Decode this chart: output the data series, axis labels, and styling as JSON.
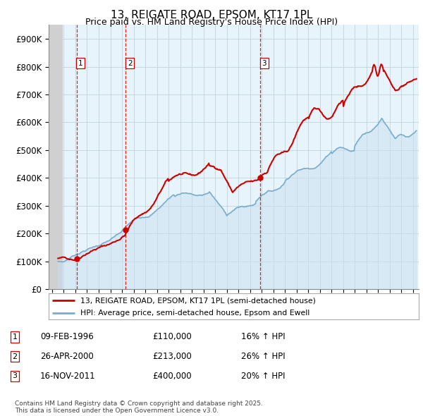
{
  "title": "13, REIGATE ROAD, EPSOM, KT17 1PL",
  "subtitle": "Price paid vs. HM Land Registry's House Price Index (HPI)",
  "ylim": [
    0,
    950000
  ],
  "yticks": [
    0,
    100000,
    200000,
    300000,
    400000,
    500000,
    600000,
    700000,
    800000,
    900000
  ],
  "ytick_labels": [
    "£0",
    "£100K",
    "£200K",
    "£300K",
    "£400K",
    "£500K",
    "£600K",
    "£700K",
    "£800K",
    "£900K"
  ],
  "xlim_start": 1993.7,
  "xlim_end": 2025.5,
  "hatch_end_year": 1994.92,
  "sale_dates": [
    1996.1,
    2000.32,
    2011.88
  ],
  "sale_prices": [
    110000,
    213000,
    400000
  ],
  "sale_labels": [
    "1",
    "2",
    "3"
  ],
  "sale_date_strings": [
    "09-FEB-1996",
    "26-APR-2000",
    "16-NOV-2011"
  ],
  "sale_price_strings": [
    "£110,000",
    "£213,000",
    "£400,000"
  ],
  "sale_hpi_strings": [
    "16% ↑ HPI",
    "26% ↑ HPI",
    "20% ↑ HPI"
  ],
  "price_line_color": "#cc0000",
  "hpi_line_color": "#7aadcc",
  "hpi_fill_color": "#c8dff0",
  "vline_color": "#dd0000",
  "background_color": "#ffffff",
  "plot_bg_color": "#e8f4fb",
  "legend_line1": "13, REIGATE ROAD, EPSOM, KT17 1PL (semi-detached house)",
  "legend_line2": "HPI: Average price, semi-detached house, Epsom and Ewell",
  "footer": "Contains HM Land Registry data © Crown copyright and database right 2025.\nThis data is licensed under the Open Government Licence v3.0.",
  "grid_color": "#b8ccd8"
}
